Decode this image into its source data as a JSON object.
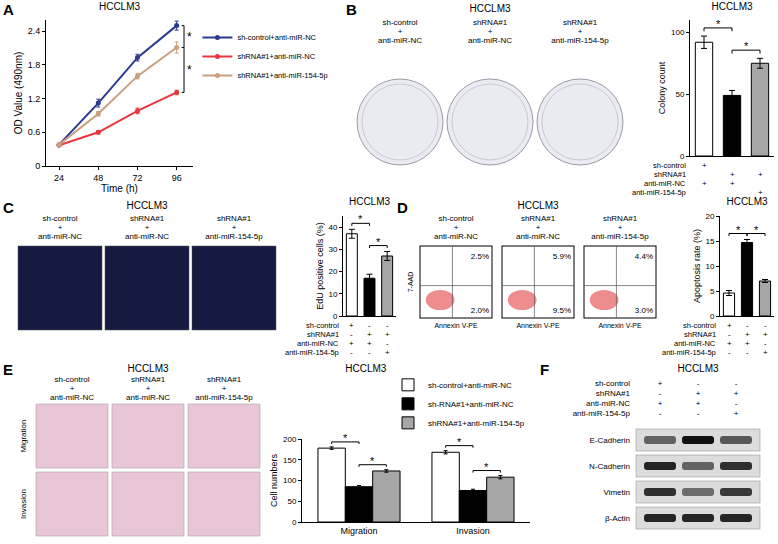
{
  "chart_data": [
    {
      "type": "line",
      "title": "HCCLM3",
      "x_label": "Time (h)",
      "y_label": "OD Value (490nm)",
      "x": [
        24,
        48,
        72,
        96
      ],
      "xlim": [
        16,
        106
      ],
      "xticks": [
        24,
        48,
        72,
        96
      ],
      "ylim": [
        0,
        2.6
      ],
      "yticks": [
        0,
        0.6,
        1.2,
        1.8,
        2.4
      ],
      "grid": false,
      "legend": "right",
      "marker": "circle",
      "series": [
        {
          "name": "sh-control+anti-miR-NC",
          "color": "#2b3990",
          "values": [
            0.38,
            1.12,
            1.93,
            2.5
          ],
          "errors": [
            0.02,
            0.07,
            0.06,
            0.08
          ]
        },
        {
          "name": "shRNA#1+anti-miR-NC",
          "color": "#e8383d",
          "values": [
            0.37,
            0.6,
            0.98,
            1.31
          ],
          "errors": [
            0.02,
            0.03,
            0.05,
            0.04
          ]
        },
        {
          "name": "shRNA#1+anti-miR-154-5p",
          "color": "#c8a07e",
          "values": [
            0.38,
            0.93,
            1.6,
            2.11
          ],
          "errors": [
            0.02,
            0.04,
            0.05,
            0.1
          ]
        }
      ],
      "significance": [
        {
          "between": [
            0,
            2
          ],
          "label": "*"
        },
        {
          "between": [
            2,
            1
          ],
          "label": "*"
        }
      ]
    },
    {
      "type": "bar",
      "title": "HCCLM3",
      "y_label": "Colony count",
      "categories": [
        null,
        null,
        null
      ],
      "values": [
        92,
        49,
        75
      ],
      "errors": [
        5,
        4,
        4
      ],
      "colors": [
        "#ffffff",
        "#000000",
        "#a6a6a6"
      ],
      "ylim": [
        0,
        110
      ],
      "yticks": [
        0,
        50,
        100
      ],
      "grid": false,
      "conditions": {
        "rows": [
          "sh-control",
          "shRNA#1",
          "anti-miR-NC",
          "anti-miR-154-5p"
        ],
        "marks": [
          [
            "+",
            null,
            null
          ],
          [
            null,
            "+",
            "+"
          ],
          [
            "+",
            "+",
            null
          ],
          [
            null,
            null,
            "+"
          ]
        ]
      },
      "significance": [
        {
          "between": [
            0,
            1
          ],
          "label": "*"
        },
        {
          "between": [
            1,
            2
          ],
          "label": "*"
        }
      ]
    },
    {
      "type": "bar",
      "title": "HCCLM3",
      "y_label": "EdU positive cells (%)",
      "categories": [
        null,
        null,
        null
      ],
      "values": [
        37,
        17,
        27
      ],
      "errors": [
        2,
        1.8,
        2
      ],
      "colors": [
        "#ffffff",
        "#000000",
        "#a6a6a6"
      ],
      "ylim": [
        0,
        45
      ],
      "yticks": [
        0,
        10,
        20,
        30,
        40
      ],
      "grid": false,
      "conditions": {
        "rows": [
          "sh-control",
          "shRNA#1",
          "anti-miR-NC",
          "anti-miR-154-5p"
        ],
        "marks": [
          [
            "+",
            "-",
            "-"
          ],
          [
            "-",
            "+",
            "+"
          ],
          [
            "+",
            "+",
            "-"
          ],
          [
            "-",
            "-",
            "+"
          ]
        ]
      },
      "significance": [
        {
          "between": [
            0,
            1
          ],
          "label": "*"
        },
        {
          "between": [
            1,
            2
          ],
          "label": "*"
        }
      ]
    },
    {
      "type": "bar",
      "title": "HCCLM3",
      "y_label": "Apoptosis rate (%)",
      "categories": [
        null,
        null,
        null
      ],
      "values": [
        4.6,
        14.7,
        7.0
      ],
      "errors": [
        0.5,
        0.6,
        0.3
      ],
      "colors": [
        "#ffffff",
        "#000000",
        "#a6a6a6"
      ],
      "ylim": [
        0,
        20
      ],
      "yticks": [
        0,
        5,
        10,
        15,
        20
      ],
      "grid": false,
      "conditions": {
        "rows": [
          "sh-control",
          "shRNA#1",
          "anti-miR-NC",
          "anti-miR-154-5p"
        ],
        "marks": [
          [
            "+",
            "-",
            "-"
          ],
          [
            "-",
            "+",
            "+"
          ],
          [
            "+",
            "+",
            "-"
          ],
          [
            "-",
            "-",
            "+"
          ]
        ]
      },
      "significance": [
        {
          "between": [
            0,
            1
          ],
          "label": "*"
        },
        {
          "between": [
            1,
            2
          ],
          "label": "*"
        }
      ]
    },
    {
      "type": "bar",
      "title": "HCCLM3",
      "y_label": "Cell numbers",
      "categories": [
        "Migration",
        "Invasion"
      ],
      "ylim": [
        0,
        200
      ],
      "yticks": [
        0,
        50,
        100,
        150,
        200
      ],
      "grid": false,
      "legend": "top right",
      "series": [
        {
          "name": "sh-control+anti-miR-NC",
          "color": "#ffffff",
          "values": [
            178,
            168
          ],
          "errors": [
            3,
            4
          ]
        },
        {
          "name": "sh-RNA#1+anti-miR-NC",
          "color": "#000000",
          "values": [
            85,
            76
          ],
          "errors": [
            3,
            3
          ]
        },
        {
          "name": "shRNA#1+anti-miR-154-5p",
          "color": "#a6a6a6",
          "values": [
            123,
            108
          ],
          "errors": [
            3,
            4
          ]
        }
      ],
      "significance": [
        {
          "category": 0,
          "between": [
            0,
            1
          ],
          "label": "*"
        },
        {
          "category": 0,
          "between": [
            1,
            2
          ],
          "label": "*"
        },
        {
          "category": 1,
          "between": [
            0,
            1
          ],
          "label": "*"
        },
        {
          "category": 1,
          "between": [
            1,
            2
          ],
          "label": "*"
        }
      ]
    }
  ],
  "figure": {
    "panel_letters": [
      "A",
      "B",
      "C",
      "D",
      "E",
      "F"
    ],
    "colony_images": {
      "title": "HCCLM3",
      "captions": [
        [
          "sh-control",
          "+",
          "anti-miR-NC"
        ],
        [
          "shRNA#1",
          "+",
          "anti-miR-NC"
        ],
        [
          "shRNA#1",
          "+",
          "anti-miR-154-5p"
        ]
      ]
    },
    "edu_images": {
      "title": "HCCLM3",
      "captions": [
        [
          "sh-control",
          "+",
          "anti-miR-NC"
        ],
        [
          "shRNA#1",
          "+",
          "anti-miR-NC"
        ],
        [
          "shRNA#1",
          "+",
          "anti-miR-154-5p"
        ]
      ]
    },
    "flow_plots": {
      "title": "HCCLM3",
      "captions": [
        [
          "sh-control",
          "+",
          "anti-miR-NC"
        ],
        [
          "shRNA#1",
          "+",
          "anti-miR-NC"
        ],
        [
          "shRNA#1",
          "+",
          "anti-miR-154-5p"
        ]
      ],
      "x_label": "Annexin V-PE",
      "y_label": "7-AAD",
      "quadrants": [
        {
          "upper_right": "2.5%",
          "lower_right": "2.0%"
        },
        {
          "upper_right": "5.9%",
          "lower_right": "9.5%"
        },
        {
          "upper_right": "4.4%",
          "lower_right": "3.0%"
        }
      ]
    },
    "transwell_images": {
      "title": "HCCLM3",
      "captions": [
        [
          "sh-control",
          "+",
          "anti-miR-NC"
        ],
        [
          "shRNA#1",
          "+",
          "anti-miR-NC"
        ],
        [
          "shRNA#1",
          "+",
          "anti-miR-154-5p"
        ]
      ],
      "rows": [
        "Migration",
        "Invasion"
      ]
    },
    "western_blot": {
      "title": "HCCLM3",
      "conditions": {
        "rows": [
          "sh-control",
          "shRNA#1",
          "anti-miR-NC",
          "anti-miR-154-5p"
        ],
        "marks": [
          [
            "+",
            "-",
            "-"
          ],
          [
            "-",
            "+",
            "+"
          ],
          [
            "+",
            "+",
            "-"
          ],
          [
            "-",
            "-",
            "+"
          ]
        ]
      },
      "bands": [
        {
          "name": "E-Cadherin",
          "intensities": [
            0.6,
            1.0,
            0.65
          ]
        },
        {
          "name": "N-Cadherin",
          "intensities": [
            0.9,
            0.6,
            0.85
          ]
        },
        {
          "name": "Vimetin",
          "intensities": [
            0.85,
            0.55,
            0.8
          ]
        },
        {
          "name": "β-Actin",
          "intensities": [
            0.9,
            0.9,
            0.9
          ]
        }
      ]
    }
  }
}
